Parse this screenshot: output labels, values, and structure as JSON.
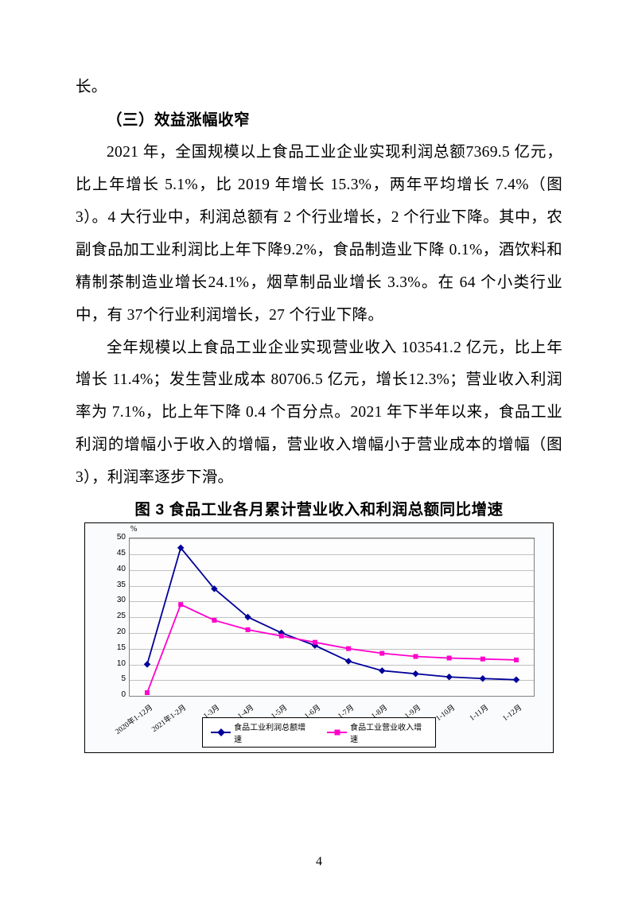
{
  "page": {
    "number": "4",
    "intro_fragment": "长。",
    "heading_3": "（三）效益涨幅收窄",
    "para1": "2021 年，全国规模以上食品工业企业实现利润总额7369.5 亿元，比上年增长 5.1%，比 2019 年增长 15.3%，两年平均增长 7.4%（图 3）。4 大行业中，利润总额有 2 个行业增长，2 个行业下降。其中，农副食品加工业利润比上年下降9.2%，食品制造业下降 0.1%，酒饮料和精制茶制造业增长24.1%，烟草制品业增长 3.3%。在 64 个小类行业中，有 37个行业利润增长，27 个行业下降。",
    "para2": "全年规模以上食品工业企业实现营业收入 103541.2 亿元，比上年增长 11.4%；发生营业成本 80706.5 亿元，增长12.3%；营业收入利润率为 7.1%，比上年下降 0.4 个百分点。2021 年下半年以来，食品工业利润的增幅小于收入的增幅，营业收入增幅小于营业成本的增幅（图 3），利润率逐步下滑。"
  },
  "chart": {
    "title": "图 3 食品工业各月累计营业收入和利润总额同比增速",
    "y_unit": "%",
    "y_ticks": [
      0,
      5,
      10,
      15,
      20,
      25,
      30,
      35,
      40,
      45,
      50
    ],
    "x_labels": [
      "2020年1-12月",
      "2021年1-2月",
      "1-3月",
      "1-4月",
      "1-5月",
      "1-6月",
      "1-7月",
      "1-8月",
      "1-9月",
      "1-10月",
      "1-11月",
      "1-12月"
    ],
    "series": [
      {
        "name": "食品工业利润总额增速",
        "color": "#000099",
        "marker": "diamond",
        "values": [
          10,
          47,
          34,
          25,
          20,
          16,
          11,
          8,
          7,
          6,
          5.5,
          5.1
        ]
      },
      {
        "name": "食品工业营业收入增速",
        "color": "#ff00cc",
        "marker": "square",
        "values": [
          1,
          29,
          24,
          21,
          19,
          17,
          15,
          13.5,
          12.5,
          12,
          11.7,
          11.4
        ]
      }
    ],
    "ylim": [
      0,
      50
    ],
    "background": "#fafbfc",
    "grid_color": "#c0c0c0",
    "border_color": "#808080"
  }
}
